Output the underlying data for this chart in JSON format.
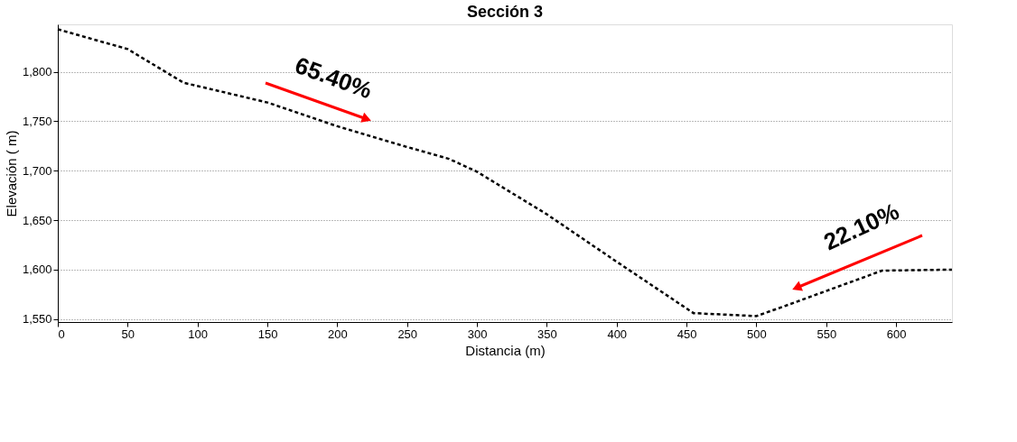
{
  "chart_data": {
    "type": "line",
    "title": "Sección 3",
    "xlabel": "Distancia (m)",
    "ylabel": "Elevación ( m)",
    "x": [
      0,
      50,
      90,
      150,
      200,
      250,
      280,
      300,
      350,
      400,
      455,
      500,
      520,
      590,
      640
    ],
    "series": [
      {
        "color": "#000000",
        "values": [
          1843,
          1823,
          1789,
          1769,
          1745,
          1724,
          1712,
          1699,
          1656,
          1608,
          1556,
          1553,
          1563,
          1599,
          1600
        ]
      }
    ],
    "xlim": [
      0,
      640
    ],
    "ylim": [
      1547,
      1848
    ],
    "xticks": [
      0,
      50,
      100,
      150,
      200,
      250,
      300,
      350,
      400,
      450,
      500,
      550,
      600
    ],
    "yticks": [
      {
        "value": 1550,
        "label": "1,550"
      },
      {
        "value": 1600,
        "label": "1,600"
      },
      {
        "value": 1650,
        "label": "1,650"
      },
      {
        "value": 1700,
        "label": "1,700"
      },
      {
        "value": 1750,
        "label": "1,750"
      },
      {
        "value": 1800,
        "label": "1,800"
      }
    ],
    "grid": "y",
    "line_style": "dashed",
    "marker": "none",
    "annotations": [
      "65.40%",
      "22.10%"
    ]
  }
}
